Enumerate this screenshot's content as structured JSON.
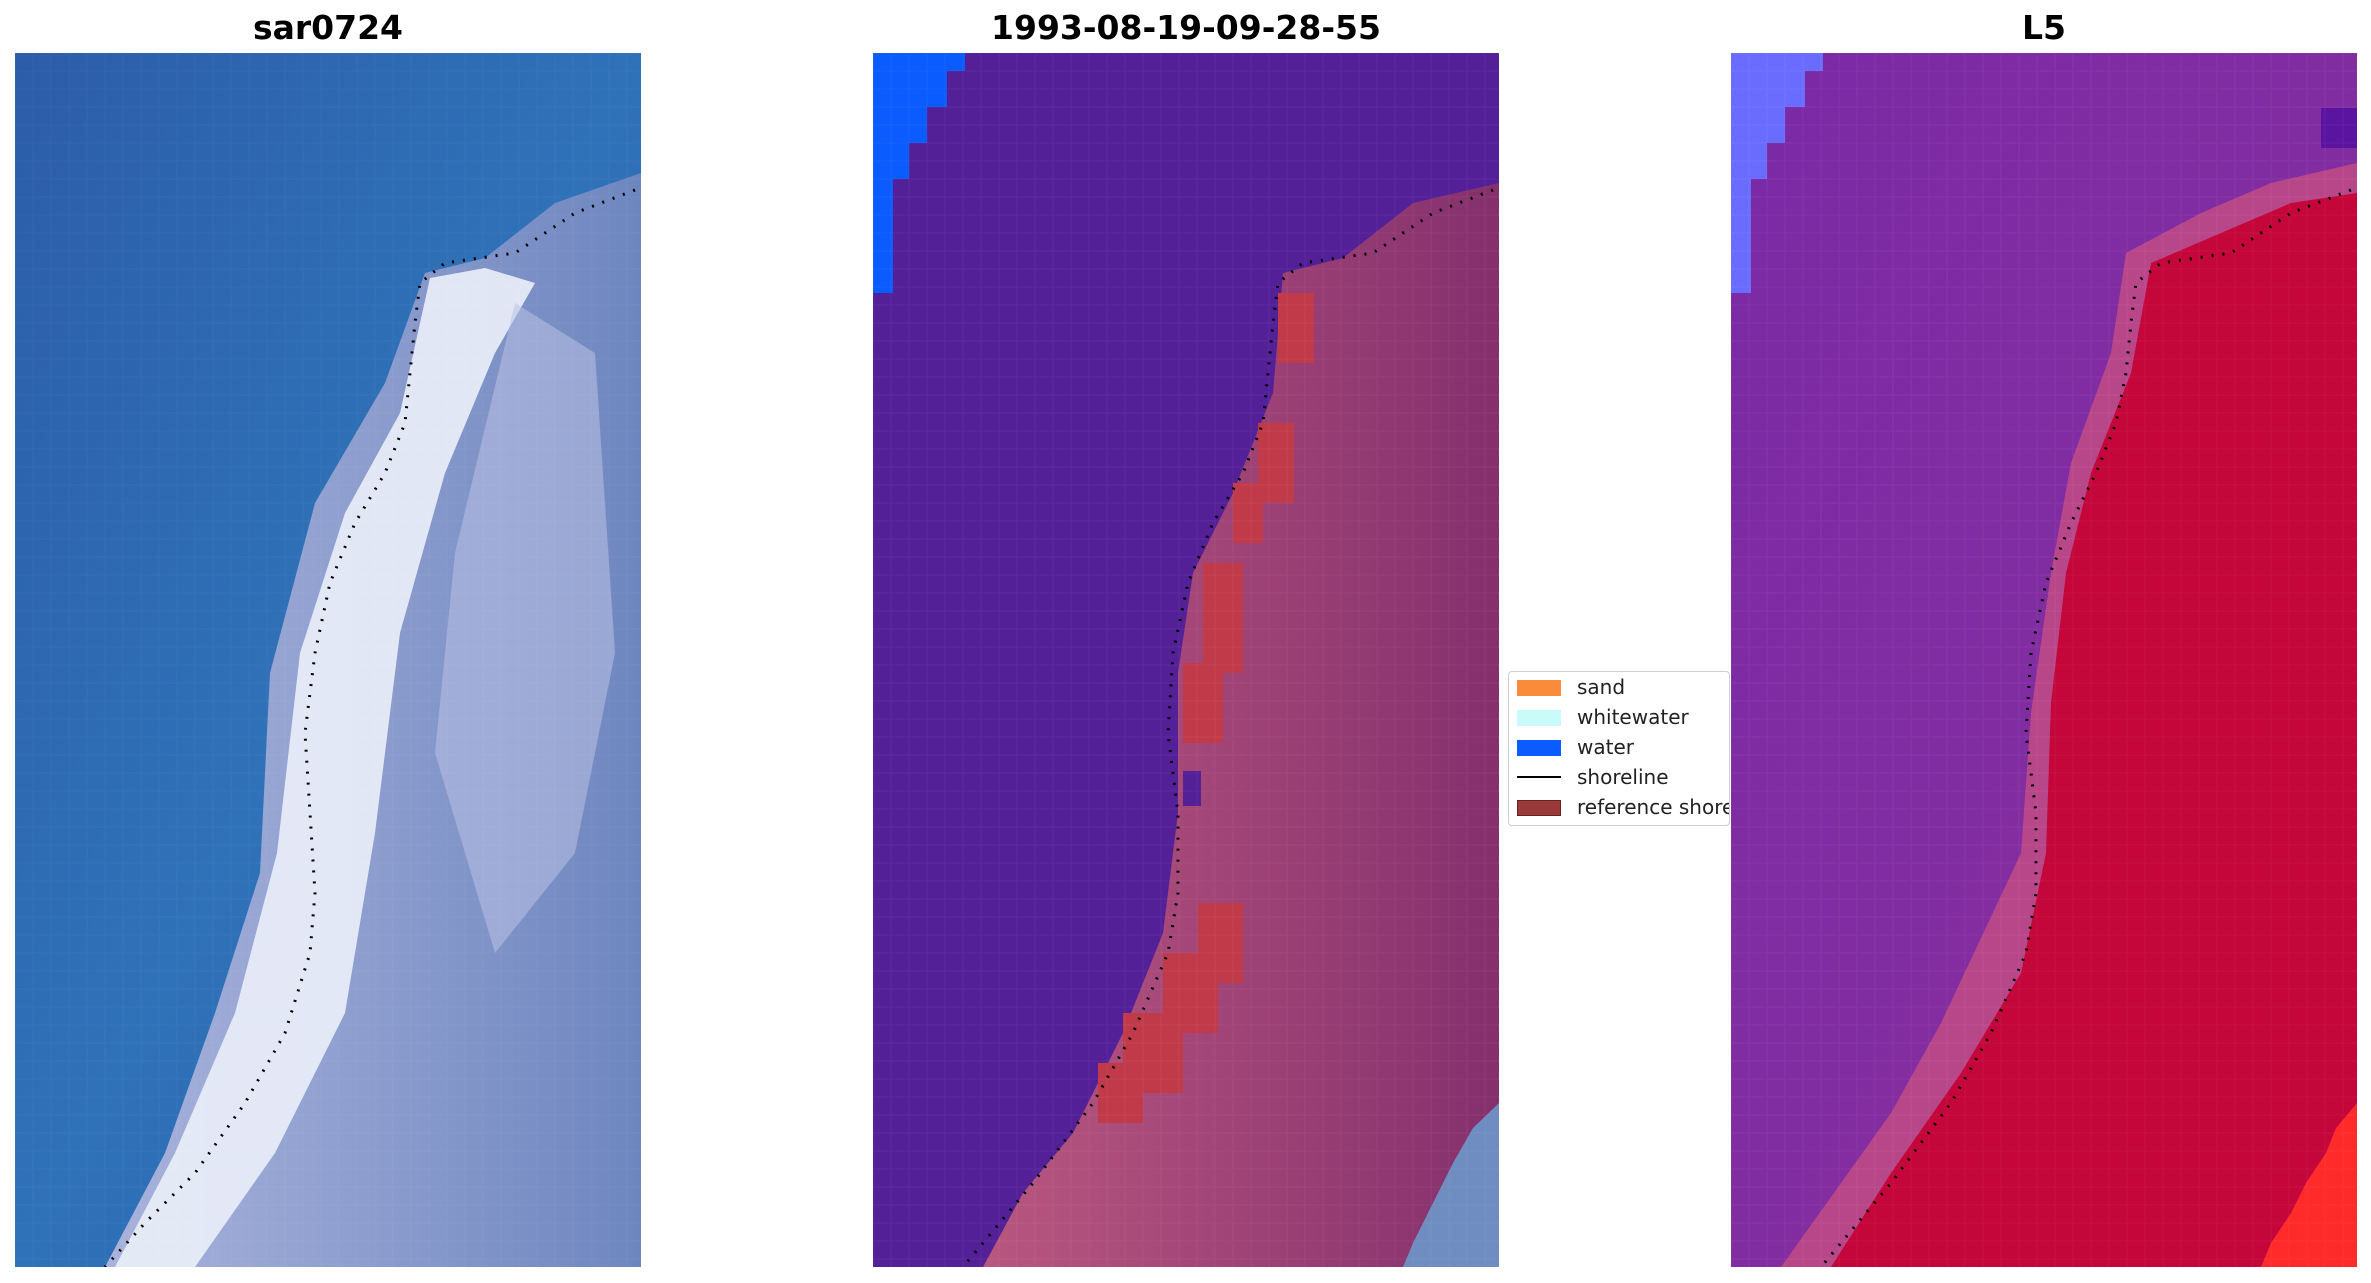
{
  "panels": [
    {
      "title": "sar0724"
    },
    {
      "title": "1993-08-19-09-28-55"
    },
    {
      "title": "L5"
    }
  ],
  "legend": {
    "items": [
      {
        "label": "sand",
        "color": "#f98b3a",
        "kind": "patch"
      },
      {
        "label": "whitewater",
        "color": "#c9fbfb",
        "kind": "patch"
      },
      {
        "label": "water",
        "color": "#0a5cff",
        "kind": "patch"
      },
      {
        "label": "shoreline",
        "color": "#000000",
        "kind": "line"
      },
      {
        "label": "reference shoreline",
        "color": "#9a3a3a",
        "edge": "#6b1f1f",
        "kind": "patch"
      }
    ]
  },
  "colors": {
    "ocean_rgb": "#2f6fb8",
    "ocean_rgb_dark": "#2a5ea8",
    "beach_rgb": "#e6ecf7",
    "land_rgb": "#8a97c8",
    "class_water_bg": "#532097",
    "class_land": "#b5527e",
    "class_land_dark": "#8a2f6e",
    "class_shore_red": "#c13a4a",
    "class_water_blue": "#0a5cff",
    "class_gray_blue": "#6f8dc0",
    "mndwi_water": "#7a2aa0",
    "mndwi_land": "#c4063a",
    "mndwi_blue": "#6a6cff",
    "mndwi_red": "#ff2a2a"
  }
}
